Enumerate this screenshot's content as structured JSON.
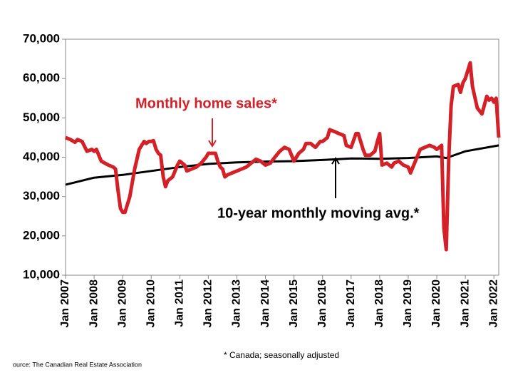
{
  "chart_data": {
    "type": "line",
    "annotations": [
      "Monthly home sales*",
      "10-year monthly moving avg.*"
    ],
    "footnote": "* Canada; seasonally adjusted",
    "source": "ource: The Canadian Real Estate Association",
    "xlim": [
      2007,
      2022.17
    ],
    "xticks": [
      {
        "value": 2007,
        "label": "Jan 2007"
      },
      {
        "value": 2008,
        "label": "Jan 2008"
      },
      {
        "value": 2009,
        "label": "Jan 2009"
      },
      {
        "value": 2010,
        "label": "Jan 2010"
      },
      {
        "value": 2011,
        "label": "Jan 2011"
      },
      {
        "value": 2012,
        "label": "Jan 2012"
      },
      {
        "value": 2013,
        "label": "Jan 2013"
      },
      {
        "value": 2014,
        "label": "Jan 2014"
      },
      {
        "value": 2015,
        "label": "Jan 2015"
      },
      {
        "value": 2016,
        "label": "Jan 2016"
      },
      {
        "value": 2017,
        "label": "Jan 2017"
      },
      {
        "value": 2018,
        "label": "Jan 2018"
      },
      {
        "value": 2019,
        "label": "Jan 2019"
      },
      {
        "value": 2020,
        "label": "Jan 2020"
      },
      {
        "value": 2021,
        "label": "Jan 2021"
      },
      {
        "value": 2022,
        "label": "Jan 2022"
      }
    ],
    "ylim": [
      10000,
      70000
    ],
    "yticks": [
      {
        "value": 10000,
        "label": "10,000"
      },
      {
        "value": 20000,
        "label": "20,000"
      },
      {
        "value": 30000,
        "label": "30,000"
      },
      {
        "value": 40000,
        "label": "40,000"
      },
      {
        "value": 50000,
        "label": "50,000"
      },
      {
        "value": 60000,
        "label": "60,000"
      },
      {
        "value": 70000,
        "label": "70,000"
      }
    ],
    "series": [
      {
        "color": "#d42027",
        "width": 5,
        "x": [
          2007.0,
          2007.17,
          2007.33,
          2007.42,
          2007.58,
          2007.75,
          2007.92,
          2008.0,
          2008.08,
          2008.25,
          2008.5,
          2008.67,
          2008.75,
          2008.83,
          2008.92,
          2009.0,
          2009.08,
          2009.25,
          2009.42,
          2009.58,
          2009.75,
          2009.83,
          2009.92,
          2010.0,
          2010.08,
          2010.17,
          2010.25,
          2010.33,
          2010.42,
          2010.5,
          2010.58,
          2010.75,
          2010.92,
          2011.0,
          2011.17,
          2011.25,
          2011.42,
          2011.58,
          2011.75,
          2011.92,
          2012.0,
          2012.17,
          2012.25,
          2012.33,
          2012.42,
          2012.5,
          2012.58,
          2012.67,
          2012.83,
          2013.0,
          2013.17,
          2013.33,
          2013.5,
          2013.67,
          2013.83,
          2014.0,
          2014.17,
          2014.33,
          2014.5,
          2014.67,
          2014.83,
          2015.0,
          2015.17,
          2015.33,
          2015.42,
          2015.58,
          2015.75,
          2015.92,
          2016.0,
          2016.17,
          2016.25,
          2016.42,
          2016.58,
          2016.75,
          2016.83,
          2017.0,
          2017.17,
          2017.25,
          2017.42,
          2017.5,
          2017.67,
          2017.83,
          2017.92,
          2018.0,
          2018.08,
          2018.25,
          2018.42,
          2018.5,
          2018.67,
          2018.83,
          2019.0,
          2019.08,
          2019.25,
          2019.42,
          2019.58,
          2019.75,
          2019.92,
          2020.0,
          2020.17,
          2020.25,
          2020.33,
          2020.42,
          2020.5,
          2020.58,
          2020.75,
          2020.83,
          2020.92,
          2021.0,
          2021.17,
          2021.25,
          2021.42,
          2021.58,
          2021.75,
          2021.83,
          2021.92,
          2022.0,
          2022.08,
          2022.17
        ],
        "values": [
          45000,
          44500,
          43800,
          44500,
          44000,
          41500,
          42000,
          41500,
          42000,
          39000,
          38000,
          37500,
          37000,
          32000,
          27000,
          26000,
          26000,
          30000,
          37000,
          42000,
          44000,
          43500,
          44000,
          44000,
          44200,
          42000,
          41000,
          40500,
          35000,
          32500,
          34000,
          35000,
          38000,
          39000,
          38000,
          36500,
          37000,
          37500,
          38500,
          40000,
          41000,
          41000,
          41000,
          39000,
          37500,
          37000,
          35000,
          35500,
          36000,
          36500,
          37000,
          37500,
          38500,
          39500,
          39000,
          38000,
          38500,
          40000,
          41500,
          42500,
          42000,
          39000,
          41000,
          42000,
          43500,
          43500,
          42500,
          44000,
          44000,
          45000,
          47000,
          46500,
          46000,
          45500,
          43000,
          42500,
          46000,
          46000,
          42000,
          40500,
          40500,
          41500,
          44000,
          46000,
          38000,
          38500,
          37500,
          38500,
          39000,
          38000,
          37500,
          36000,
          39000,
          42000,
          42500,
          43000,
          42500,
          42000,
          43000,
          22000,
          16500,
          40000,
          53000,
          58000,
          58500,
          56500,
          59000,
          60000,
          64000,
          58000,
          52500,
          51000,
          55500,
          54500,
          55000,
          54000,
          55000,
          45000
        ]
      },
      {
        "color": "#000000",
        "width": 3,
        "x": [
          2007,
          2008,
          2009,
          2010,
          2011,
          2012,
          2013,
          2014,
          2015,
          2016,
          2017,
          2018,
          2019,
          2020,
          2020.33,
          2021,
          2022,
          2022.17
        ],
        "values": [
          33000,
          34800,
          35500,
          36500,
          37500,
          38300,
          38700,
          38900,
          39000,
          39300,
          39700,
          39600,
          39800,
          40200,
          39800,
          41500,
          42800,
          43000
        ]
      }
    ]
  }
}
